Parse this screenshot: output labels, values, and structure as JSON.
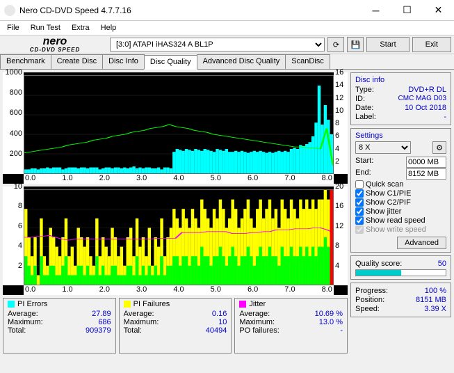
{
  "window": {
    "title": "Nero CD-DVD Speed 4.7.7.16"
  },
  "menu": {
    "file": "File",
    "runTest": "Run Test",
    "extra": "Extra",
    "help": "Help"
  },
  "toolbar": {
    "logo_top": "nero",
    "logo_bottom": "CD-DVD SPEED",
    "device": "[3:0]   ATAPI iHAS324   A BL1P",
    "start": "Start",
    "exit": "Exit"
  },
  "tabs": [
    "Benchmark",
    "Create Disc",
    "Disc Info",
    "Disc Quality",
    "Advanced Disc Quality",
    "ScanDisc"
  ],
  "activeTab": 3,
  "chart1": {
    "yleft": {
      "min": 0,
      "max": 1000,
      "ticks": [
        200,
        400,
        600,
        800,
        1000
      ]
    },
    "yright": {
      "min": 0,
      "max": 16,
      "ticks": [
        2,
        4,
        6,
        8,
        10,
        12,
        14,
        16
      ]
    },
    "x": {
      "min": 0,
      "max": 8,
      "ticks": [
        "0.0",
        "1.0",
        "2.0",
        "3.0",
        "4.0",
        "5.0",
        "6.0",
        "7.0",
        "8.0"
      ]
    },
    "grid_color": "#333333",
    "bars_color": "#00ffff",
    "line_color": "#00ff00",
    "bars": [
      0.04,
      0.04,
      0.05,
      0.05,
      0.04,
      0.05,
      0.05,
      0.06,
      0.05,
      0.06,
      0.06,
      0.06,
      0.04,
      0.05,
      0.06,
      0.06,
      0.06,
      0.05,
      0.06,
      0.06,
      0.05,
      0.06,
      0.06,
      0.06,
      0.04,
      0.05,
      0.06,
      0.06,
      0.05,
      0.06,
      0.06,
      0.05,
      0.06,
      0.05,
      0.06,
      0.07,
      0.05,
      0.06,
      0.05,
      0.06,
      0.06,
      0.05,
      0.05,
      0.06,
      0.04,
      0.06,
      0.06,
      0.05,
      0.22,
      0.25,
      0.24,
      0.23,
      0.25,
      0.24,
      0.23,
      0.25,
      0.24,
      0.23,
      0.25,
      0.24,
      0.23,
      0.22,
      0.25,
      0.24,
      0.23,
      0.25,
      0.22,
      0.22,
      0.23,
      0.22,
      0.23,
      0.22,
      0.21,
      0.22,
      0.23,
      0.22,
      0.23,
      0.22,
      0.21,
      0.22,
      0.21,
      0.22,
      0.23,
      0.22,
      0.23,
      0.22,
      0.25,
      0.26,
      0.25,
      0.29,
      0.28,
      0.3,
      0.32,
      0.38,
      0.52,
      0.9,
      0.5,
      0.7,
      0.55,
      0.4
    ],
    "line": [
      0.21,
      0.22,
      0.23,
      0.24,
      0.25,
      0.26,
      0.27,
      0.29,
      0.3,
      0.31,
      0.32,
      0.34,
      0.35,
      0.36,
      0.38,
      0.39,
      0.4,
      0.42,
      0.43,
      0.44,
      0.46,
      0.47,
      0.48,
      0.5,
      0.48,
      0.47,
      0.46,
      0.44,
      0.43,
      0.42,
      0.4,
      0.39,
      0.38,
      0.37,
      0.36,
      0.35,
      0.34,
      0.33,
      0.32,
      0.31,
      0.3,
      0.29,
      0.28,
      0.27,
      0.27,
      0.26,
      0.26,
      0.25,
      0.46,
      0.08
    ]
  },
  "chart2": {
    "yleft": {
      "min": 0,
      "max": 10,
      "ticks": [
        2,
        4,
        6,
        8,
        10
      ]
    },
    "yright": {
      "min": 0,
      "max": 20,
      "ticks": [
        4,
        8,
        12,
        16,
        20
      ]
    },
    "x": {
      "min": 0,
      "max": 8,
      "ticks": [
        "0.0",
        "1.0",
        "2.0",
        "3.0",
        "4.0",
        "5.0",
        "6.0",
        "7.0",
        "8.0"
      ]
    },
    "grid_color": "#333333",
    "bars_yellow_color": "#ffff00",
    "bars_green_color": "#00ff00",
    "line_color": "#ff00ff",
    "edge_color": "#ff0000",
    "bars": [
      0.8,
      0.5,
      0.3,
      0.5,
      0.1,
      0.7,
      0.3,
      0.2,
      0.6,
      0.5,
      0.4,
      0.3,
      0.5,
      0.7,
      0.3,
      0.4,
      0.2,
      0.6,
      0.5,
      0.4,
      0.5,
      0.3,
      0.2,
      0.7,
      0.3,
      0.5,
      0.4,
      0.3,
      0.6,
      0.5,
      0.3,
      0.4,
      0.2,
      0.5,
      0.6,
      0.3,
      0.7,
      0.4,
      0.5,
      0.3,
      0.6,
      0.2,
      0.5,
      0.4,
      0.7,
      0.3,
      0.5,
      0.6,
      0.8,
      0.7,
      0.6,
      0.8,
      0.7,
      0.6,
      0.8,
      0.7,
      0.6,
      0.9,
      0.8,
      0.7,
      0.6,
      0.8,
      0.7,
      0.9,
      0.8,
      0.6,
      0.7,
      0.9,
      0.8,
      0.6,
      0.7,
      0.8,
      0.9,
      0.7,
      0.6,
      0.8,
      0.9,
      0.7,
      0.8,
      0.9,
      0.7,
      0.8,
      0.6,
      0.9,
      0.8,
      0.7,
      0.9,
      0.8,
      0.7,
      0.9,
      0.8,
      0.9,
      0.8,
      0.9,
      0.8,
      0.9,
      0.9,
      1.0,
      0.9,
      1.0
    ],
    "green_overlay": [
      0.3,
      0.2,
      0.1,
      0.2,
      0.0,
      0.3,
      0.1,
      0.1,
      0.2,
      0.2,
      0.1,
      0.1,
      0.2,
      0.3,
      0.1,
      0.1,
      0.1,
      0.2,
      0.2,
      0.1,
      0.2,
      0.1,
      0.1,
      0.3,
      0.1,
      0.2,
      0.1,
      0.1,
      0.2,
      0.2,
      0.1,
      0.1,
      0.1,
      0.2,
      0.2,
      0.1,
      0.3,
      0.1,
      0.2,
      0.1,
      0.2,
      0.1,
      0.2,
      0.1,
      0.3,
      0.1,
      0.2,
      0.2,
      0.3,
      0.3,
      0.2,
      0.3,
      0.3,
      0.2,
      0.3,
      0.3,
      0.2,
      0.4,
      0.3,
      0.3,
      0.2,
      0.3,
      0.3,
      0.4,
      0.3,
      0.2,
      0.3,
      0.4,
      0.3,
      0.2,
      0.3,
      0.3,
      0.4,
      0.3,
      0.2,
      0.3,
      0.4,
      0.3,
      0.3,
      0.4,
      0.3,
      0.3,
      0.2,
      0.4,
      0.3,
      0.3,
      0.4,
      0.3,
      0.3,
      0.4,
      0.3,
      0.4,
      0.3,
      0.4,
      0.3,
      0.4,
      0.4,
      0.5,
      0.4,
      0.5
    ],
    "line": [
      0.5,
      0.5,
      0.51,
      0.51,
      0.52,
      0.5,
      0.48,
      0.47,
      0.48,
      0.48,
      0.48,
      0.48,
      0.48,
      0.48,
      0.48,
      0.48,
      0.48,
      0.48,
      0.48,
      0.48,
      0.48,
      0.49,
      0.49,
      0.49,
      0.49,
      0.55,
      0.55,
      0.55,
      0.55,
      0.56,
      0.56,
      0.56,
      0.56,
      0.54,
      0.54,
      0.54,
      0.55,
      0.55,
      0.56,
      0.56,
      0.58,
      0.58,
      0.58,
      0.59,
      0.59,
      0.59,
      0.6,
      0.6,
      0.58,
      0.55
    ]
  },
  "stats": {
    "piErrors": {
      "label": "PI Errors",
      "color": "#00ffff",
      "avg_l": "Average:",
      "avg": "27.89",
      "max_l": "Maximum:",
      "max": "686",
      "tot_l": "Total:",
      "tot": "909379"
    },
    "piFailures": {
      "label": "PI Failures",
      "color": "#ffff00",
      "avg_l": "Average:",
      "avg": "0.16",
      "max_l": "Maximum:",
      "max": "10",
      "tot_l": "Total:",
      "tot": "40494"
    },
    "jitter": {
      "label": "Jitter",
      "color": "#ff00ff",
      "avg_l": "Average:",
      "avg": "10.69 %",
      "max_l": "Maximum:",
      "max": "13.0 %",
      "po_l": "PO failures:",
      "po": "-"
    }
  },
  "discInfo": {
    "header": "Disc info",
    "type_l": "Type:",
    "type": "DVD+R DL",
    "id_l": "ID:",
    "id": "CMC MAG D03",
    "date_l": "Date:",
    "date": "10 Oct 2018",
    "label_l": "Label:",
    "label": "-"
  },
  "settings": {
    "header": "Settings",
    "speed": "8 X",
    "start_l": "Start:",
    "start": "0000 MB",
    "end_l": "End:",
    "end": "8152 MB",
    "quickscan": "Quick scan",
    "c1": "Show C1/PIE",
    "c2": "Show C2/PIF",
    "jitter": "Show jitter",
    "readSpeed": "Show read speed",
    "writeSpeed": "Show write speed",
    "advanced": "Advanced",
    "cb": {
      "quickscan": false,
      "c1": true,
      "c2": true,
      "jitter": true,
      "readSpeed": true,
      "writeSpeed": true
    }
  },
  "quality": {
    "label": "Quality score:",
    "value": "50",
    "bar_color": "#00cccc"
  },
  "progress": {
    "progress_l": "Progress:",
    "progress": "100 %",
    "position_l": "Position:",
    "position": "8151 MB",
    "speed_l": "Speed:",
    "speed": "3.39 X"
  }
}
